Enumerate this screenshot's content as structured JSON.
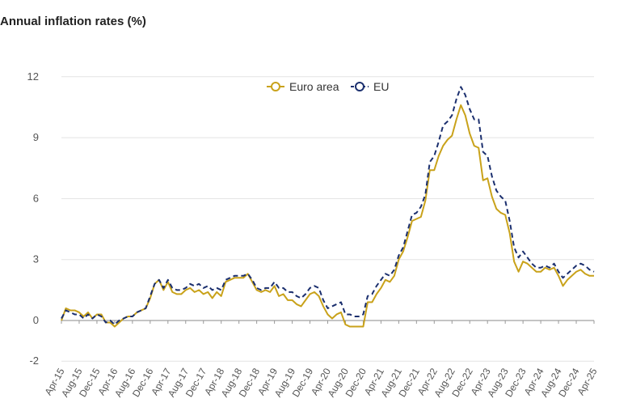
{
  "chart_data": {
    "type": "line",
    "title": "Annual inflation rates (%)",
    "xlabel": "",
    "ylabel": "",
    "ylim": [
      -2,
      13
    ],
    "y_ticks": [
      12,
      9,
      6,
      3,
      0,
      -2
    ],
    "x_tick_labels": [
      "Apr-15",
      "Aug-15",
      "Dec-15",
      "Apr-16",
      "Aug-16",
      "Dec-16",
      "Apr-17",
      "Aug-17",
      "Dec-17",
      "Apr-18",
      "Aug-18",
      "Dec-18",
      "Apr-19",
      "Aug-19",
      "Dec-19",
      "Apr-20",
      "Aug-20",
      "Dec-20",
      "Apr-21",
      "Aug-21",
      "Dec-21",
      "Apr-22",
      "Aug-22",
      "Dec-22",
      "Apr-23",
      "Aug-23",
      "Dec-23",
      "Apr-24",
      "Aug-24",
      "Dec-24",
      "Apr-25"
    ],
    "legend_position": "top-center",
    "grid": "horizontal",
    "series": [
      {
        "name": "Euro area",
        "color": "#c9a21a",
        "style": "solid",
        "values": [
          0.0,
          0.6,
          0.5,
          0.5,
          0.4,
          0.2,
          0.4,
          0.1,
          0.3,
          0.3,
          -0.1,
          -0.1,
          -0.3,
          -0.1,
          0.1,
          0.2,
          0.2,
          0.4,
          0.5,
          0.6,
          1.1,
          1.8,
          2.0,
          1.5,
          1.9,
          1.4,
          1.3,
          1.3,
          1.5,
          1.6,
          1.4,
          1.5,
          1.3,
          1.4,
          1.1,
          1.4,
          1.2,
          1.9,
          2.0,
          2.1,
          2.1,
          2.1,
          2.3,
          1.9,
          1.5,
          1.4,
          1.5,
          1.4,
          1.7,
          1.2,
          1.3,
          1.0,
          1.0,
          0.8,
          0.7,
          1.0,
          1.3,
          1.4,
          1.2,
          0.7,
          0.3,
          0.1,
          0.3,
          0.4,
          -0.2,
          -0.3,
          -0.3,
          -0.3,
          -0.3,
          0.9,
          0.9,
          1.3,
          1.6,
          2.0,
          1.9,
          2.2,
          3.0,
          3.4,
          4.1,
          4.9,
          5.0,
          5.1,
          5.9,
          7.4,
          7.4,
          8.1,
          8.6,
          8.9,
          9.1,
          9.9,
          10.6,
          10.1,
          9.2,
          8.6,
          8.5,
          6.9,
          7.0,
          6.1,
          5.5,
          5.3,
          5.2,
          4.3,
          2.9,
          2.4,
          2.9,
          2.8,
          2.6,
          2.4,
          2.4,
          2.6,
          2.5,
          2.6,
          2.2,
          1.7,
          2.0,
          2.2,
          2.4,
          2.5,
          2.3,
          2.2,
          2.2
        ]
      },
      {
        "name": "EU",
        "color": "#1b2f6e",
        "style": "dashed",
        "values": [
          0.1,
          0.5,
          0.4,
          0.3,
          0.3,
          0.1,
          0.3,
          0.1,
          0.3,
          0.2,
          -0.1,
          0.0,
          -0.2,
          0.0,
          0.1,
          0.2,
          0.2,
          0.4,
          0.5,
          0.6,
          1.2,
          1.8,
          2.0,
          1.6,
          2.0,
          1.6,
          1.5,
          1.5,
          1.6,
          1.8,
          1.7,
          1.8,
          1.6,
          1.7,
          1.5,
          1.6,
          1.5,
          2.0,
          2.1,
          2.2,
          2.2,
          2.2,
          2.3,
          2.0,
          1.6,
          1.5,
          1.6,
          1.6,
          1.9,
          1.6,
          1.6,
          1.4,
          1.4,
          1.2,
          1.1,
          1.3,
          1.6,
          1.7,
          1.6,
          1.0,
          0.6,
          0.7,
          0.8,
          0.9,
          0.3,
          0.3,
          0.2,
          0.2,
          0.3,
          1.2,
          1.3,
          1.7,
          2.0,
          2.3,
          2.2,
          2.5,
          3.2,
          3.6,
          4.4,
          5.2,
          5.3,
          5.6,
          6.2,
          7.8,
          8.1,
          8.8,
          9.6,
          9.8,
          10.1,
          10.9,
          11.5,
          11.1,
          10.4,
          9.9,
          9.9,
          8.3,
          8.1,
          7.1,
          6.4,
          6.1,
          5.9,
          4.9,
          3.6,
          3.1,
          3.4,
          3.1,
          2.8,
          2.6,
          2.6,
          2.7,
          2.6,
          2.8,
          2.4,
          2.1,
          2.3,
          2.5,
          2.7,
          2.8,
          2.7,
          2.5,
          2.4
        ]
      }
    ]
  }
}
